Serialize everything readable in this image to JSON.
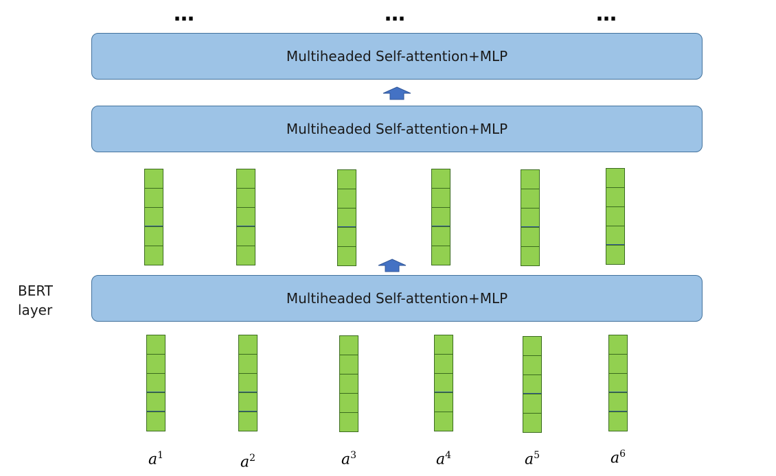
{
  "top_dots": [
    "…",
    "…",
    "…"
  ],
  "blocks": [
    {
      "label": "Multiheaded Self-attention+MLP"
    },
    {
      "label": "Multiheaded Self-attention+MLP"
    },
    {
      "label": "Multiheaded Self-attention+MLP"
    }
  ],
  "bert_label": {
    "line1": "BERT",
    "line2": "layer"
  },
  "tokens": [
    {
      "base": "a",
      "sup": "1"
    },
    {
      "base": "a",
      "sup": "2"
    },
    {
      "base": "a",
      "sup": "3"
    },
    {
      "base": "a",
      "sup": "4"
    },
    {
      "base": "a",
      "sup": "5"
    },
    {
      "base": "a",
      "sup": "6"
    }
  ],
  "colors": {
    "block_fill": "#9dc3e6",
    "block_border": "#41719c",
    "vector_fill": "#92d050",
    "arrow_fill": "#4472c4"
  }
}
